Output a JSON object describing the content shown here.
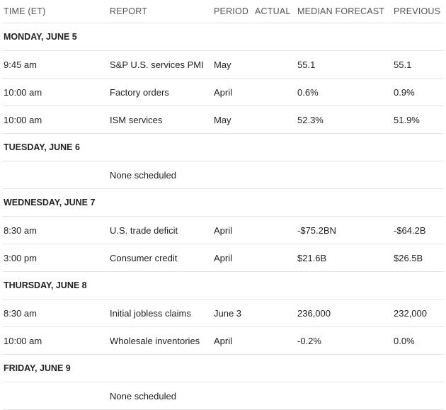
{
  "columns": {
    "time": "TIME (ET)",
    "report": "REPORT",
    "period": "PERIOD",
    "actual": "ACTUAL",
    "median": "MEDIAN FORECAST",
    "previous": "PREVIOUS"
  },
  "days": [
    {
      "label": "MONDAY, JUNE 5",
      "rows": [
        {
          "time": "9:45 am",
          "report": "S&P U.S. services PMI",
          "period": "May",
          "actual": "",
          "median": "55.1",
          "previous": "55.1"
        },
        {
          "time": "10:00 am",
          "report": "Factory orders",
          "period": "April",
          "actual": "",
          "median": "0.6%",
          "previous": "0.9%"
        },
        {
          "time": "10:00 am",
          "report": "ISM services",
          "period": "May",
          "actual": "",
          "median": "52.3%",
          "previous": "51.9%"
        }
      ]
    },
    {
      "label": "TUESDAY, JUNE 6",
      "rows": [
        {
          "time": "",
          "report": "None scheduled",
          "period": "",
          "actual": "",
          "median": "",
          "previous": ""
        }
      ]
    },
    {
      "label": "WEDNESDAY, JUNE 7",
      "rows": [
        {
          "time": "8:30 am",
          "report": "U.S. trade deficit",
          "period": "April",
          "actual": "",
          "median": "-$75.2BN",
          "previous": "-$64.2B"
        },
        {
          "time": "3:00 pm",
          "report": "Consumer credit",
          "period": "April",
          "actual": "",
          "median": "$21.6B",
          "previous": "$26.5B"
        }
      ]
    },
    {
      "label": "THURSDAY, JUNE 8",
      "rows": [
        {
          "time": "8:30 am",
          "report": "Initial jobless claims",
          "period": "June 3",
          "actual": "",
          "median": "236,000",
          "previous": "232,000"
        },
        {
          "time": "10:00 am",
          "report": "Wholesale inventories",
          "period": "April",
          "actual": "",
          "median": "-0.2%",
          "previous": "0.0%"
        }
      ]
    },
    {
      "label": "FRIDAY, JUNE 9",
      "rows": [
        {
          "time": "",
          "report": "None scheduled",
          "period": "",
          "actual": "",
          "median": "",
          "previous": ""
        }
      ]
    }
  ]
}
